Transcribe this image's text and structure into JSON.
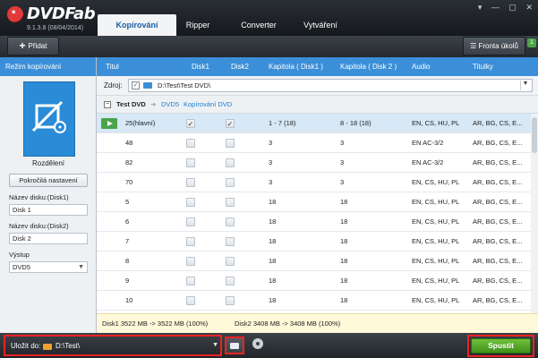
{
  "app": {
    "name": "DVDFab",
    "version": "9.1.3.8 (08/04/2014)"
  },
  "tabs": [
    "Kopírování",
    "Ripper",
    "Converter",
    "Vytváření"
  ],
  "toolbar": {
    "add_label": "Přidat",
    "queue_label": "Fronta úkolů",
    "queue_count": "1"
  },
  "left": {
    "mode_header": "Režim kopírování",
    "mode_name": "Rozdělení",
    "advanced_label": "Pokročilá nastavení",
    "disc1_label": "Název disku:(Disk1)",
    "disc1_value": "Disk 1",
    "disc2_label": "Název disku:(Disk2)",
    "disc2_value": "Disk 2",
    "output_label": "Výstup",
    "output_value": "DVD5"
  },
  "columns": [
    "Titul",
    "Disk1",
    "Disk2",
    "Kapitola ( Disk1 )",
    "Kapitola ( Disk 2 )",
    "Audio",
    "Titulky"
  ],
  "source": {
    "label": "Zdroj:",
    "path": "D:\\Test\\Test DVD\\"
  },
  "tree": {
    "root": "Test DVD",
    "target": "DVD5",
    "mode": "Kopírování DVD"
  },
  "rows": [
    {
      "title": "25(hlavní)",
      "d1": true,
      "d2": true,
      "ch1": "1 - 7 (18)",
      "ch2": "8 - 18 (18)",
      "audio": "EN, CS, HU, PL",
      "subs": "AR, BG, CS, E..."
    },
    {
      "title": "48",
      "d1": false,
      "d2": false,
      "ch1": "3",
      "ch2": "3",
      "audio": "EN AC-3/2",
      "subs": "AR, BG, CS, E..."
    },
    {
      "title": "82",
      "d1": false,
      "d2": false,
      "ch1": "3",
      "ch2": "3",
      "audio": "EN AC-3/2",
      "subs": "AR, BG, CS, E..."
    },
    {
      "title": "70",
      "d1": false,
      "d2": false,
      "ch1": "3",
      "ch2": "3",
      "audio": "EN, CS, HU, PL",
      "subs": "AR, BG, CS, E..."
    },
    {
      "title": "5",
      "d1": false,
      "d2": false,
      "ch1": "18",
      "ch2": "18",
      "audio": "EN, CS, HU, PL",
      "subs": "AR, BG, CS, E..."
    },
    {
      "title": "6",
      "d1": false,
      "d2": false,
      "ch1": "18",
      "ch2": "18",
      "audio": "EN, CS, HU, PL",
      "subs": "AR, BG, CS, E..."
    },
    {
      "title": "7",
      "d1": false,
      "d2": false,
      "ch1": "18",
      "ch2": "18",
      "audio": "EN, CS, HU, PL",
      "subs": "AR, BG, CS, E..."
    },
    {
      "title": "8",
      "d1": false,
      "d2": false,
      "ch1": "18",
      "ch2": "18",
      "audio": "EN, CS, HU, PL",
      "subs": "AR, BG, CS, E..."
    },
    {
      "title": "9",
      "d1": false,
      "d2": false,
      "ch1": "18",
      "ch2": "18",
      "audio": "EN, CS, HU, PL",
      "subs": "AR, BG, CS, E..."
    },
    {
      "title": "10",
      "d1": false,
      "d2": false,
      "ch1": "18",
      "ch2": "18",
      "audio": "EN, CS, HU, PL",
      "subs": "AR, BG, CS, E..."
    }
  ],
  "sizes": {
    "disk1": "Disk1   3522 MB   ->   3522 MB   (100%)",
    "disk2": "Disk2   3408 MB   ->   3408 MB   (100%)"
  },
  "bottom": {
    "save_label": "Uložit do:",
    "save_path": "D:\\Test\\",
    "start_label": "Spustit"
  },
  "icons": {
    "add": "plus-icon",
    "queue": "list-icon",
    "browse": "folder-icon",
    "iso": "disc-icon",
    "play": "play-icon"
  }
}
